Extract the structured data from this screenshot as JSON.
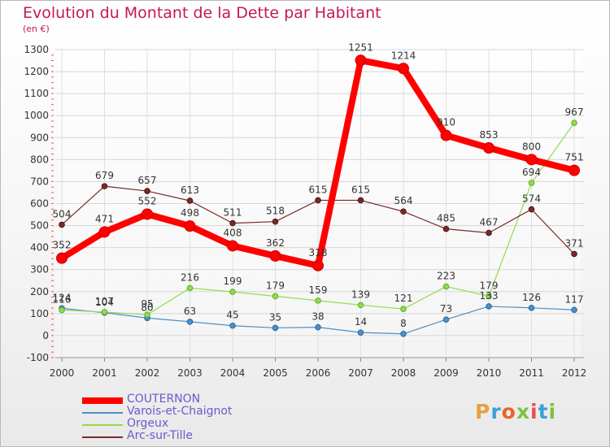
{
  "title": "Evolution du Montant de la Dette par Habitant",
  "unit": "(en €)",
  "brand": "Proxiti",
  "chart_data": {
    "type": "line",
    "x": [
      "2000",
      "2001",
      "2002",
      "2003",
      "2004",
      "2005",
      "2006",
      "2007",
      "2008",
      "2009",
      "2010",
      "2011",
      "2012"
    ],
    "ylim": [
      -100,
      1300
    ],
    "yticks": [
      -100,
      0,
      100,
      200,
      300,
      400,
      500,
      600,
      700,
      800,
      900,
      1000,
      1100,
      1200,
      1300
    ],
    "grid": true,
    "legend_position": "bottom-left",
    "series": [
      {
        "name": "COUTERNON",
        "color": "#ff0000",
        "values": [
          352,
          471,
          552,
          498,
          408,
          362,
          318,
          1251,
          1214,
          910,
          853,
          800,
          751
        ]
      },
      {
        "name": "Varois-et-Chaignot",
        "color": "#4a90c8",
        "values": [
          124,
          104,
          80,
          63,
          45,
          35,
          38,
          14,
          8,
          73,
          133,
          126,
          117
        ]
      },
      {
        "name": "Orgeux",
        "color": "#8fdc4c",
        "values": [
          116,
          107,
          95,
          216,
          199,
          179,
          159,
          139,
          121,
          223,
          179,
          694,
          967
        ]
      },
      {
        "name": "Arc-sur-Tille",
        "color": "#7a2a2a",
        "values": [
          504,
          679,
          657,
          613,
          511,
          518,
          615,
          615,
          564,
          485,
          467,
          574,
          371
        ]
      }
    ]
  }
}
